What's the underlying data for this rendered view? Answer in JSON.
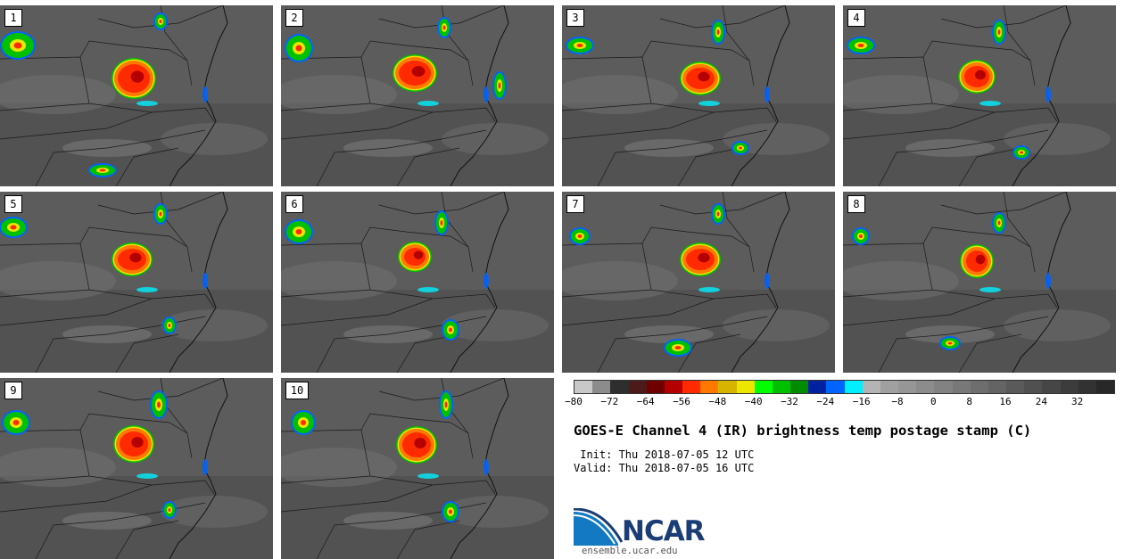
{
  "panels": [
    {
      "label": "1"
    },
    {
      "label": "2"
    },
    {
      "label": "3"
    },
    {
      "label": "4"
    },
    {
      "label": "5"
    },
    {
      "label": "6"
    },
    {
      "label": "7"
    },
    {
      "label": "8"
    },
    {
      "label": "9"
    },
    {
      "label": "10"
    }
  ],
  "colorbar": {
    "colors": [
      "#c8c8c8",
      "#8c8c8c",
      "#2e2e2e",
      "#4d1a1a",
      "#6e0000",
      "#b40000",
      "#ff2a00",
      "#ff7800",
      "#d7b400",
      "#ece600",
      "#00ff00",
      "#00c000",
      "#008c00",
      "#0022a0",
      "#0064ff",
      "#00f0ff",
      "#b4b4b4",
      "#a0a0a0",
      "#969696",
      "#8c8c8c",
      "#828282",
      "#787878",
      "#6e6e6e",
      "#646464",
      "#5a5a5a",
      "#505050",
      "#464646",
      "#3c3c3c",
      "#323232",
      "#282828"
    ],
    "ticks": [
      "−80",
      "−72",
      "−64",
      "−56",
      "−48",
      "−40",
      "−32",
      "−24",
      "−16",
      "−8",
      "0",
      "8",
      "16",
      "24",
      "32"
    ]
  },
  "title": "GOES-E Channel 4 (IR) brightness temp postage stamp (C)",
  "init": " Init: Thu 2018-07-05 12 UTC",
  "valid": "Valid: Thu 2018-07-05 16 UTC",
  "logo": {
    "word": "NCAR",
    "url": "ensemble.ucar.edu",
    "icon": "ncar-swoosh-icon"
  }
}
